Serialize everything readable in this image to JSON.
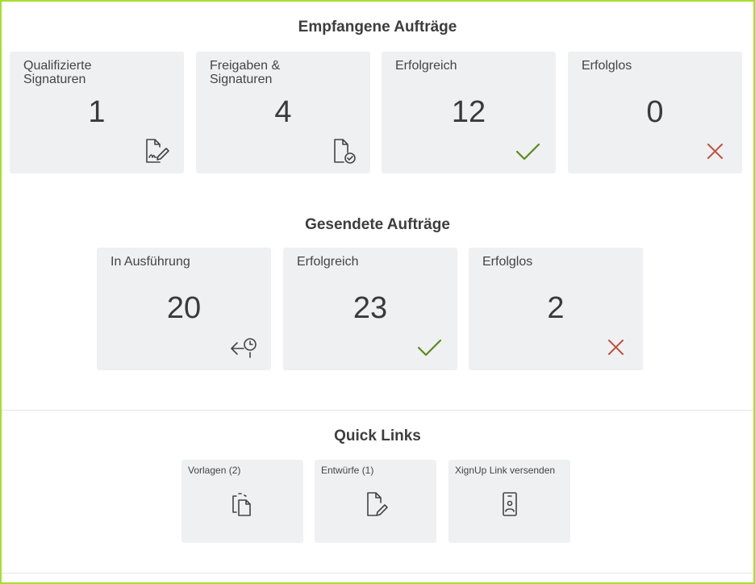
{
  "received": {
    "title": "Empfangene Aufträge",
    "cards": [
      {
        "label": "Qualifizierte Signaturen",
        "value": "1",
        "icon": "document-signature-icon"
      },
      {
        "label": "Freigaben & Signaturen",
        "value": "4",
        "icon": "document-check-icon"
      },
      {
        "label": "Erfolgreich",
        "value": "12",
        "icon": "checkmark-icon"
      },
      {
        "label": "Erfolglos",
        "value": "0",
        "icon": "x-icon"
      }
    ]
  },
  "sent": {
    "title": "Gesendete Aufträge",
    "cards": [
      {
        "label": "In Ausführung",
        "value": "20",
        "icon": "arrow-clock-icon"
      },
      {
        "label": "Erfolgreich",
        "value": "23",
        "icon": "checkmark-icon"
      },
      {
        "label": "Erfolglos",
        "value": "2",
        "icon": "x-icon"
      }
    ]
  },
  "quick_links": {
    "title": "Quick Links",
    "items": [
      {
        "label": "Vorlagen (2)",
        "icon": "templates-icon"
      },
      {
        "label": "Entwürfe (1)",
        "icon": "document-edit-icon"
      },
      {
        "label": "XignUp Link versenden",
        "icon": "id-badge-icon"
      }
    ]
  },
  "colors": {
    "success": "#5a8a1e",
    "error": "#c0503e",
    "frame": "#a6de2e"
  }
}
